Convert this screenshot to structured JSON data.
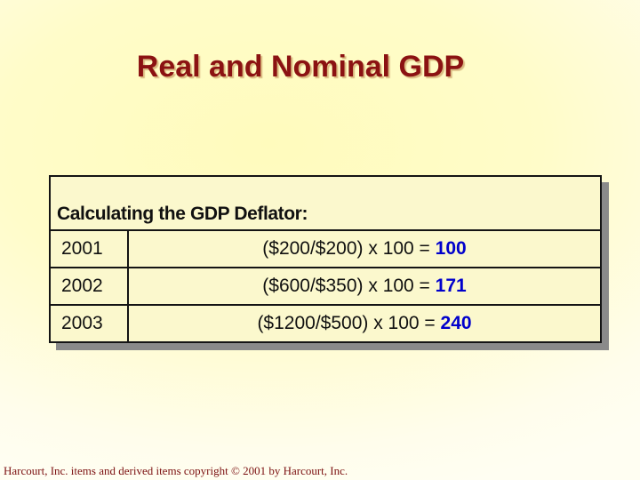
{
  "slide": {
    "title": "Real and Nominal GDP",
    "table": {
      "header": "Calculating the GDP Deflator:",
      "rows": [
        {
          "year": "2001",
          "formula": "($200/$200) x 100 = ",
          "result": "100"
        },
        {
          "year": "2002",
          "formula": "($600/$350) x 100 = ",
          "result": "171"
        },
        {
          "year": "2003",
          "formula": "($1200/$500) x 100 = ",
          "result": "240"
        }
      ]
    },
    "footer": "Harcourt, Inc. items and derived items copyright © 2001 by Harcourt, Inc.",
    "colors": {
      "title_text": "#8b1212",
      "result_text": "#0000cc",
      "footer_text": "#7b1010",
      "table_border": "#141414",
      "table_shadow": "#8a8a8a",
      "background_yellow": "#fffbbd"
    }
  }
}
